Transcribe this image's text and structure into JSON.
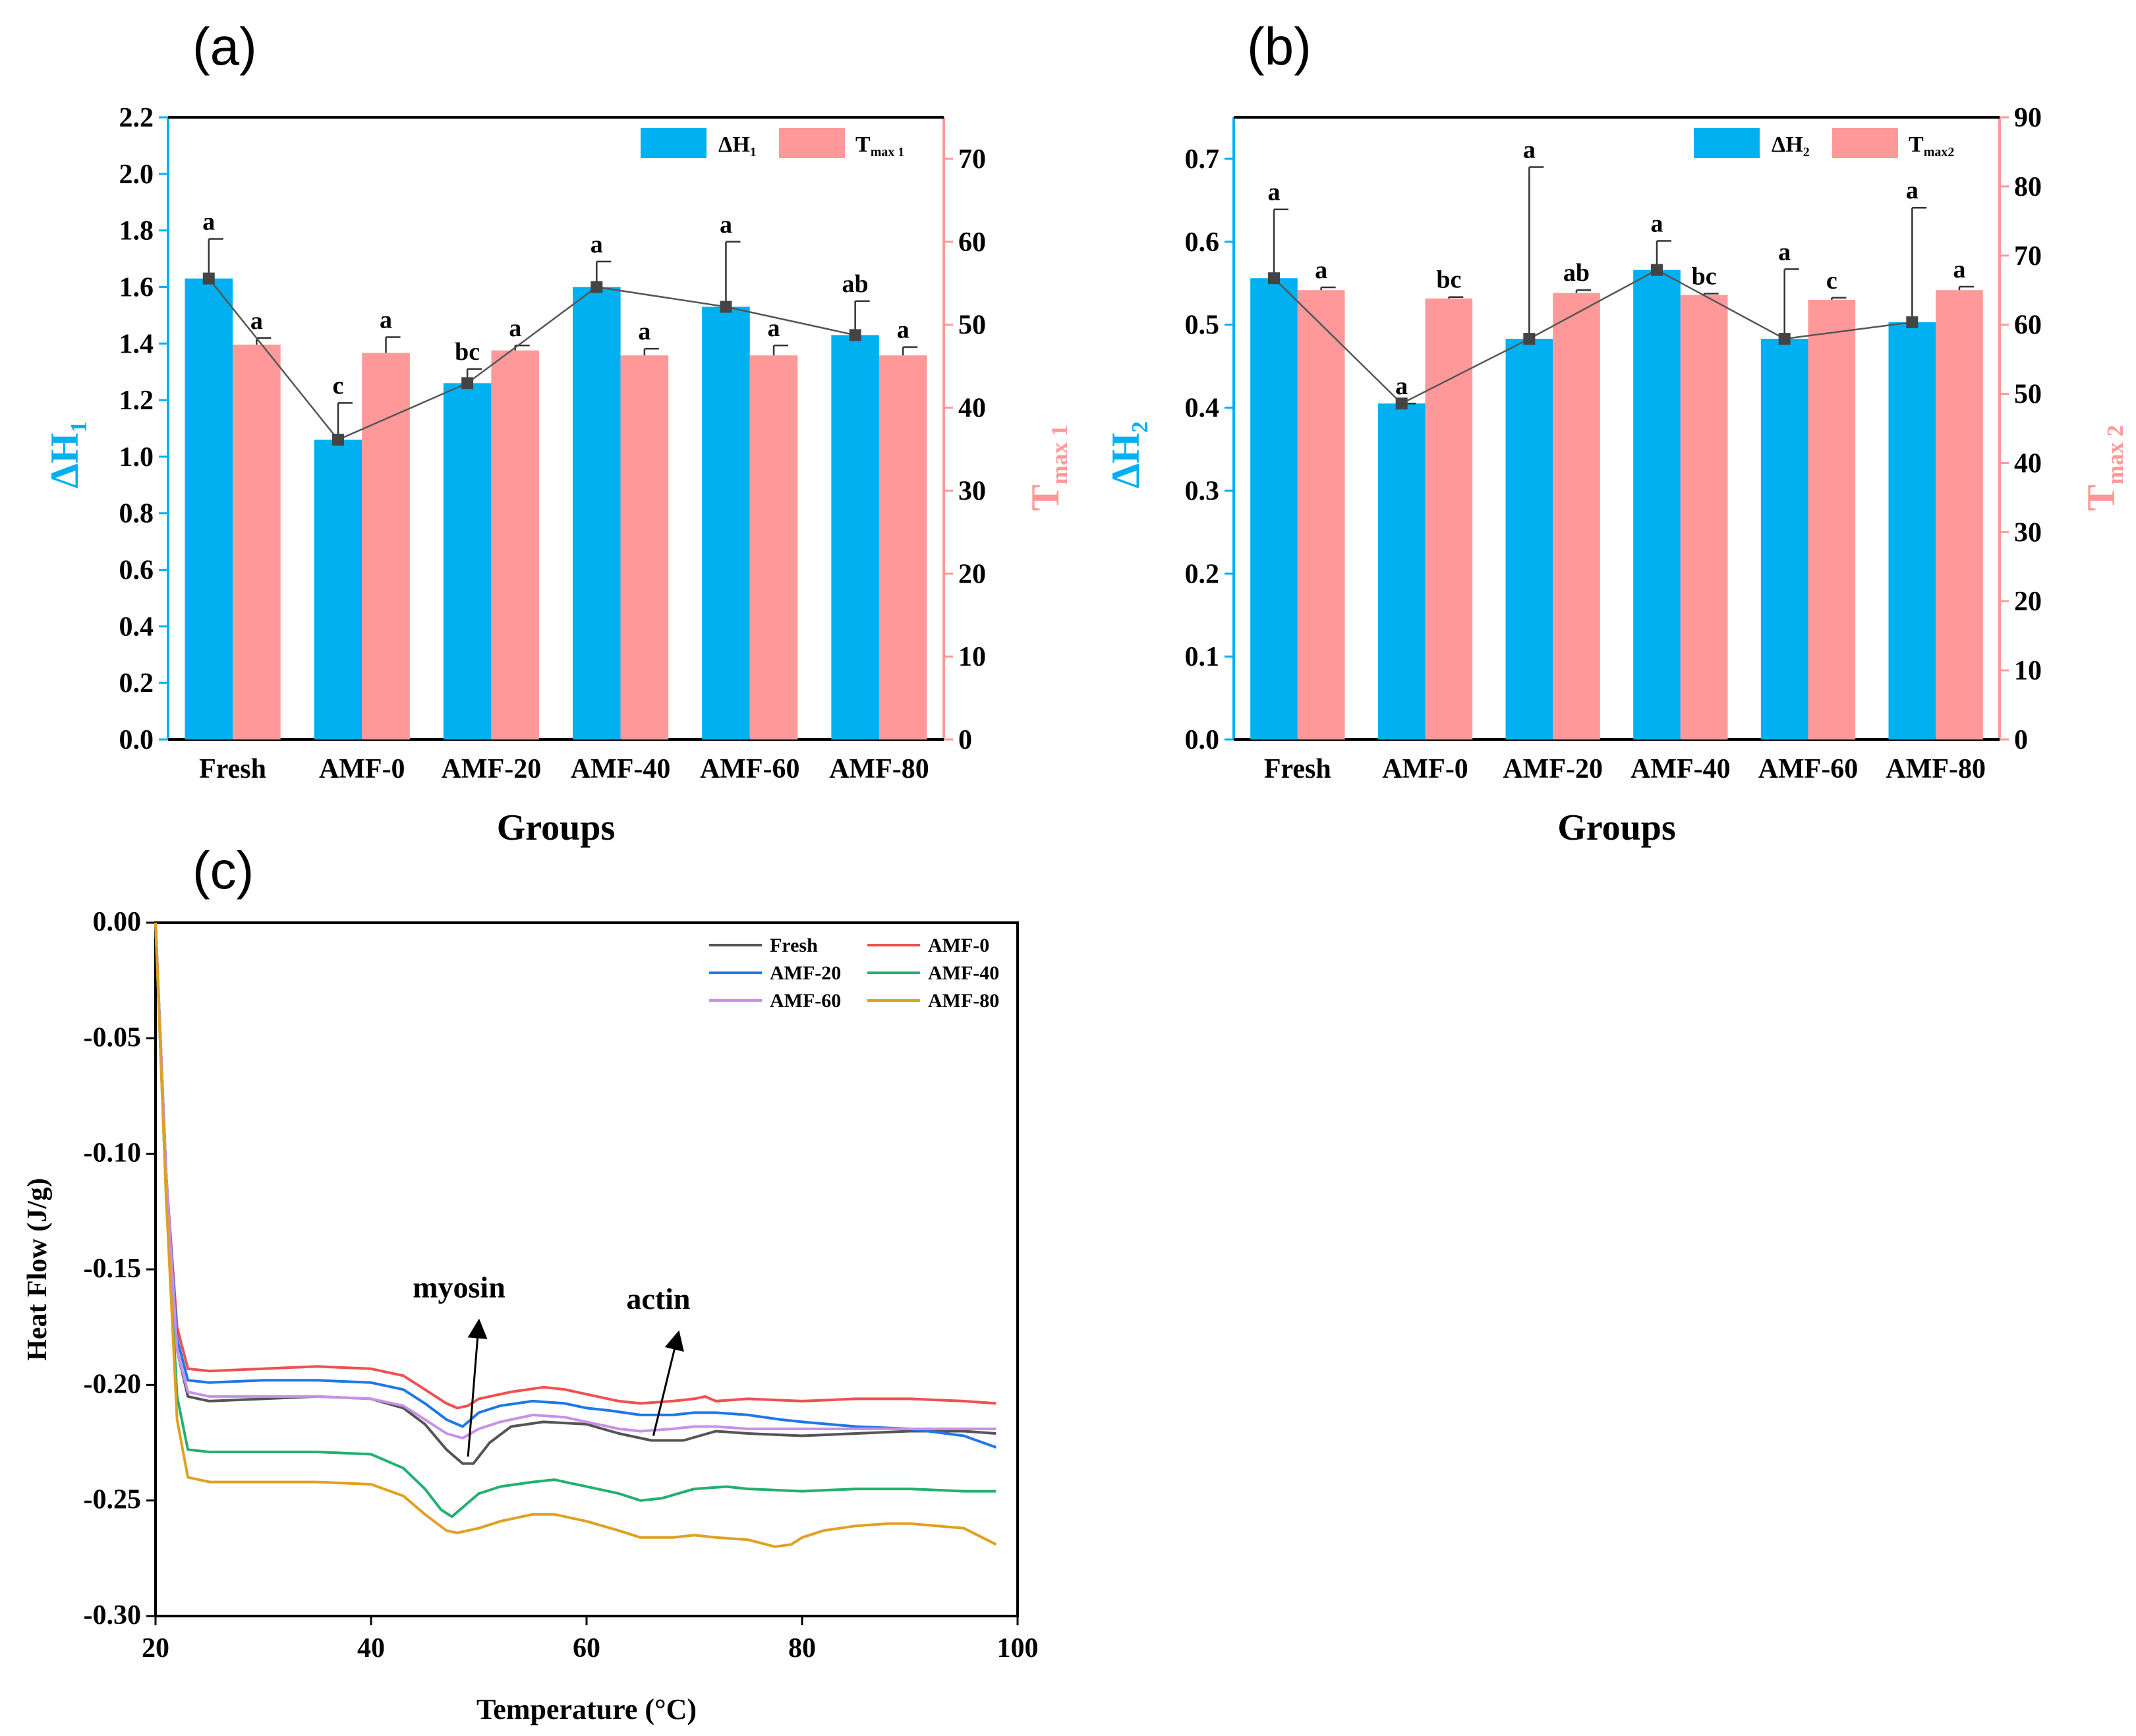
{
  "colors": {
    "delta": "#00B0F0",
    "tmax": "#FF9999",
    "fresh": "#555555",
    "amf0": "#F05050",
    "amf20": "#1E78E6",
    "amf40": "#22B070",
    "amf60": "#C890E8",
    "amf80": "#E0A020"
  },
  "panels": {
    "a": {
      "tag": "(a)"
    },
    "b": {
      "tag": "(b)"
    },
    "c": {
      "tag": "(c)"
    }
  },
  "chart_data": [
    {
      "type": "bar",
      "panel": "a",
      "categories": [
        "Fresh",
        "AMF-0",
        "AMF-20",
        "AMF-40",
        "AMF-60",
        "AMF-80"
      ],
      "xlabel": "Groups",
      "ylabel": "ΔH",
      "ylabel_sub": "1",
      "y2label": "T",
      "y2label_sub": "max 1",
      "ylim": [
        0,
        2.2
      ],
      "yticks": [
        "0.0",
        "0.2",
        "0.4",
        "0.6",
        "0.8",
        "1.0",
        "1.2",
        "1.4",
        "1.6",
        "1.8",
        "2.0",
        "2.2"
      ],
      "y2lim": [
        0,
        75
      ],
      "y2ticks": [
        "0",
        "10",
        "20",
        "30",
        "40",
        "50",
        "60",
        "70"
      ],
      "legend": [
        {
          "name": "ΔH",
          "sub": "1"
        },
        {
          "name": "T",
          "sub": "max 1"
        }
      ],
      "series": [
        {
          "name": "ΔH1",
          "axis": "left",
          "values": [
            1.63,
            1.06,
            1.26,
            1.6,
            1.53,
            1.43
          ],
          "error": [
            0.14,
            0.13,
            0.05,
            0.09,
            0.23,
            0.12
          ],
          "letters": [
            "a",
            "c",
            "bc",
            "a",
            "a",
            "ab"
          ],
          "trend_line": true
        },
        {
          "name": "Tmax 1",
          "axis": "right",
          "values": [
            47.6,
            46.6,
            46.9,
            46.3,
            46.3,
            46.3
          ],
          "error": [
            0.8,
            1.9,
            0.6,
            0.8,
            1.2,
            1.0
          ],
          "letters": [
            "a",
            "a",
            "a",
            "a",
            "a",
            "a"
          ]
        }
      ],
      "legend_position": "top-right"
    },
    {
      "type": "bar",
      "panel": "b",
      "categories": [
        "Fresh",
        "AMF-0",
        "AMF-20",
        "AMF-40",
        "AMF-60",
        "AMF-80"
      ],
      "xlabel": "Groups",
      "ylabel": "ΔH",
      "ylabel_sub": "2",
      "y2label": "T",
      "y2label_sub": "max 2",
      "ylim": [
        0,
        0.75
      ],
      "yticks": [
        "0.0",
        "0.1",
        "0.2",
        "0.3",
        "0.4",
        "0.5",
        "0.6",
        "0.7"
      ],
      "y2lim": [
        0,
        90
      ],
      "y2ticks": [
        "0",
        "10",
        "20",
        "30",
        "40",
        "50",
        "60",
        "70",
        "80",
        "90"
      ],
      "legend": [
        {
          "name": "ΔH",
          "sub": "2"
        },
        {
          "name": "T",
          "sub": "max2"
        }
      ],
      "series": [
        {
          "name": "ΔH2",
          "axis": "left",
          "values": [
            0.556,
            0.405,
            0.483,
            0.566,
            0.483,
            0.503
          ],
          "error": [
            0.083,
            0.0,
            0.207,
            0.035,
            0.084,
            0.138
          ],
          "letters": [
            "a",
            "a",
            "a",
            "a",
            "a",
            "a"
          ],
          "trend_line": true
        },
        {
          "name": "Tmax2",
          "axis": "right",
          "values": [
            65.0,
            63.8,
            64.6,
            64.3,
            63.6,
            65.0
          ],
          "error": [
            0.4,
            0.2,
            0.4,
            0.2,
            0.3,
            0.5
          ],
          "letters": [
            "a",
            "bc",
            "ab",
            "bc",
            "c",
            "a"
          ]
        }
      ],
      "legend_position": "top-right"
    },
    {
      "type": "line",
      "panel": "c",
      "xlabel": "Temperature (°C)",
      "ylabel": "Heat Flow (J/g)",
      "xlim": [
        20,
        100
      ],
      "xticks": [
        "20",
        "40",
        "60",
        "80",
        "100"
      ],
      "ylim": [
        -0.3,
        0.0
      ],
      "yticks": [
        "0.00",
        "-0.05",
        "-0.10",
        "-0.15",
        "-0.20",
        "-0.25",
        "-0.30"
      ],
      "annotations": [
        {
          "text": "myosin",
          "tip_x": 50.0,
          "tip_y": -0.173,
          "tail_x": 49.0,
          "tail_y": -0.231
        },
        {
          "text": "actin",
          "tip_x": 68.5,
          "tip_y": -0.178,
          "tail_x": 66.2,
          "tail_y": -0.222
        }
      ],
      "legend_position": "top-right",
      "series": [
        {
          "name": "Fresh",
          "color_key": "fresh",
          "x": [
            20,
            21,
            22,
            23,
            25,
            30,
            35,
            40,
            43,
            45,
            47,
            48.5,
            49.5,
            51,
            53,
            56,
            60,
            63,
            66,
            69,
            72,
            75,
            80,
            85,
            90,
            95,
            98
          ],
          "y": [
            0.0,
            -0.11,
            -0.185,
            -0.205,
            -0.207,
            -0.206,
            -0.205,
            -0.206,
            -0.21,
            -0.217,
            -0.228,
            -0.234,
            -0.234,
            -0.225,
            -0.218,
            -0.216,
            -0.217,
            -0.221,
            -0.224,
            -0.224,
            -0.22,
            -0.221,
            -0.222,
            -0.221,
            -0.22,
            -0.22,
            -0.221
          ]
        },
        {
          "name": "AMF-0",
          "color_key": "amf0",
          "x": [
            20,
            21,
            22,
            23,
            25,
            30,
            35,
            40,
            43,
            45,
            47,
            48,
            49,
            50,
            51,
            53,
            56,
            58,
            61,
            63,
            65,
            68,
            70,
            71,
            72,
            75,
            80,
            85,
            90,
            95,
            98
          ],
          "y": [
            0.0,
            -0.11,
            -0.175,
            -0.193,
            -0.194,
            -0.193,
            -0.192,
            -0.193,
            -0.196,
            -0.202,
            -0.208,
            -0.21,
            -0.209,
            -0.206,
            -0.205,
            -0.203,
            -0.201,
            -0.202,
            -0.205,
            -0.207,
            -0.208,
            -0.207,
            -0.206,
            -0.205,
            -0.207,
            -0.206,
            -0.207,
            -0.206,
            -0.206,
            -0.207,
            -0.208
          ]
        },
        {
          "name": "AMF-20",
          "color_key": "amf20",
          "x": [
            20,
            21,
            22,
            23,
            25,
            30,
            35,
            40,
            43,
            45,
            47,
            48.5,
            50,
            52,
            55,
            58,
            60,
            62,
            65,
            68,
            70,
            72,
            75,
            78,
            80,
            85,
            90,
            95,
            98
          ],
          "y": [
            0.0,
            -0.11,
            -0.18,
            -0.198,
            -0.199,
            -0.198,
            -0.198,
            -0.199,
            -0.202,
            -0.208,
            -0.215,
            -0.218,
            -0.212,
            -0.209,
            -0.207,
            -0.208,
            -0.21,
            -0.211,
            -0.213,
            -0.213,
            -0.212,
            -0.212,
            -0.213,
            -0.215,
            -0.216,
            -0.218,
            -0.219,
            -0.222,
            -0.227
          ]
        },
        {
          "name": "AMF-40",
          "color_key": "amf40",
          "x": [
            20,
            21,
            22,
            23,
            25,
            30,
            35,
            40,
            43,
            45,
            46.5,
            47.5,
            48.5,
            50,
            52,
            55,
            57,
            60,
            63,
            65,
            67,
            70,
            73,
            75,
            80,
            85,
            90,
            95,
            98
          ],
          "y": [
            0.0,
            -0.12,
            -0.205,
            -0.228,
            -0.229,
            -0.229,
            -0.229,
            -0.23,
            -0.236,
            -0.245,
            -0.254,
            -0.257,
            -0.253,
            -0.247,
            -0.244,
            -0.242,
            -0.241,
            -0.244,
            -0.247,
            -0.25,
            -0.249,
            -0.245,
            -0.244,
            -0.245,
            -0.246,
            -0.245,
            -0.245,
            -0.246,
            -0.246
          ]
        },
        {
          "name": "AMF-60",
          "color_key": "amf60",
          "x": [
            20,
            21,
            22,
            23,
            25,
            30,
            35,
            40,
            43,
            45,
            47,
            48.5,
            50,
            52,
            55,
            58,
            61,
            63,
            65,
            68,
            70,
            72,
            75,
            80,
            85,
            90,
            95,
            98
          ],
          "y": [
            0.0,
            -0.11,
            -0.185,
            -0.203,
            -0.205,
            -0.205,
            -0.205,
            -0.206,
            -0.209,
            -0.215,
            -0.221,
            -0.223,
            -0.219,
            -0.216,
            -0.213,
            -0.214,
            -0.217,
            -0.219,
            -0.22,
            -0.219,
            -0.218,
            -0.218,
            -0.219,
            -0.219,
            -0.219,
            -0.219,
            -0.219,
            -0.219
          ]
        },
        {
          "name": "AMF-80",
          "color_key": "amf80",
          "x": [
            20,
            21,
            22,
            23,
            25,
            30,
            35,
            40,
            43,
            45,
            47,
            48,
            50,
            52,
            55,
            57,
            60,
            63,
            65,
            68,
            70,
            72,
            75,
            77.5,
            79,
            80,
            82,
            85,
            88,
            90,
            95,
            98
          ],
          "y": [
            0.0,
            -0.12,
            -0.215,
            -0.24,
            -0.242,
            -0.242,
            -0.242,
            -0.243,
            -0.248,
            -0.256,
            -0.263,
            -0.264,
            -0.262,
            -0.259,
            -0.256,
            -0.256,
            -0.259,
            -0.263,
            -0.266,
            -0.266,
            -0.265,
            -0.266,
            -0.267,
            -0.27,
            -0.269,
            -0.266,
            -0.263,
            -0.261,
            -0.26,
            -0.26,
            -0.262,
            -0.269
          ]
        }
      ]
    }
  ]
}
